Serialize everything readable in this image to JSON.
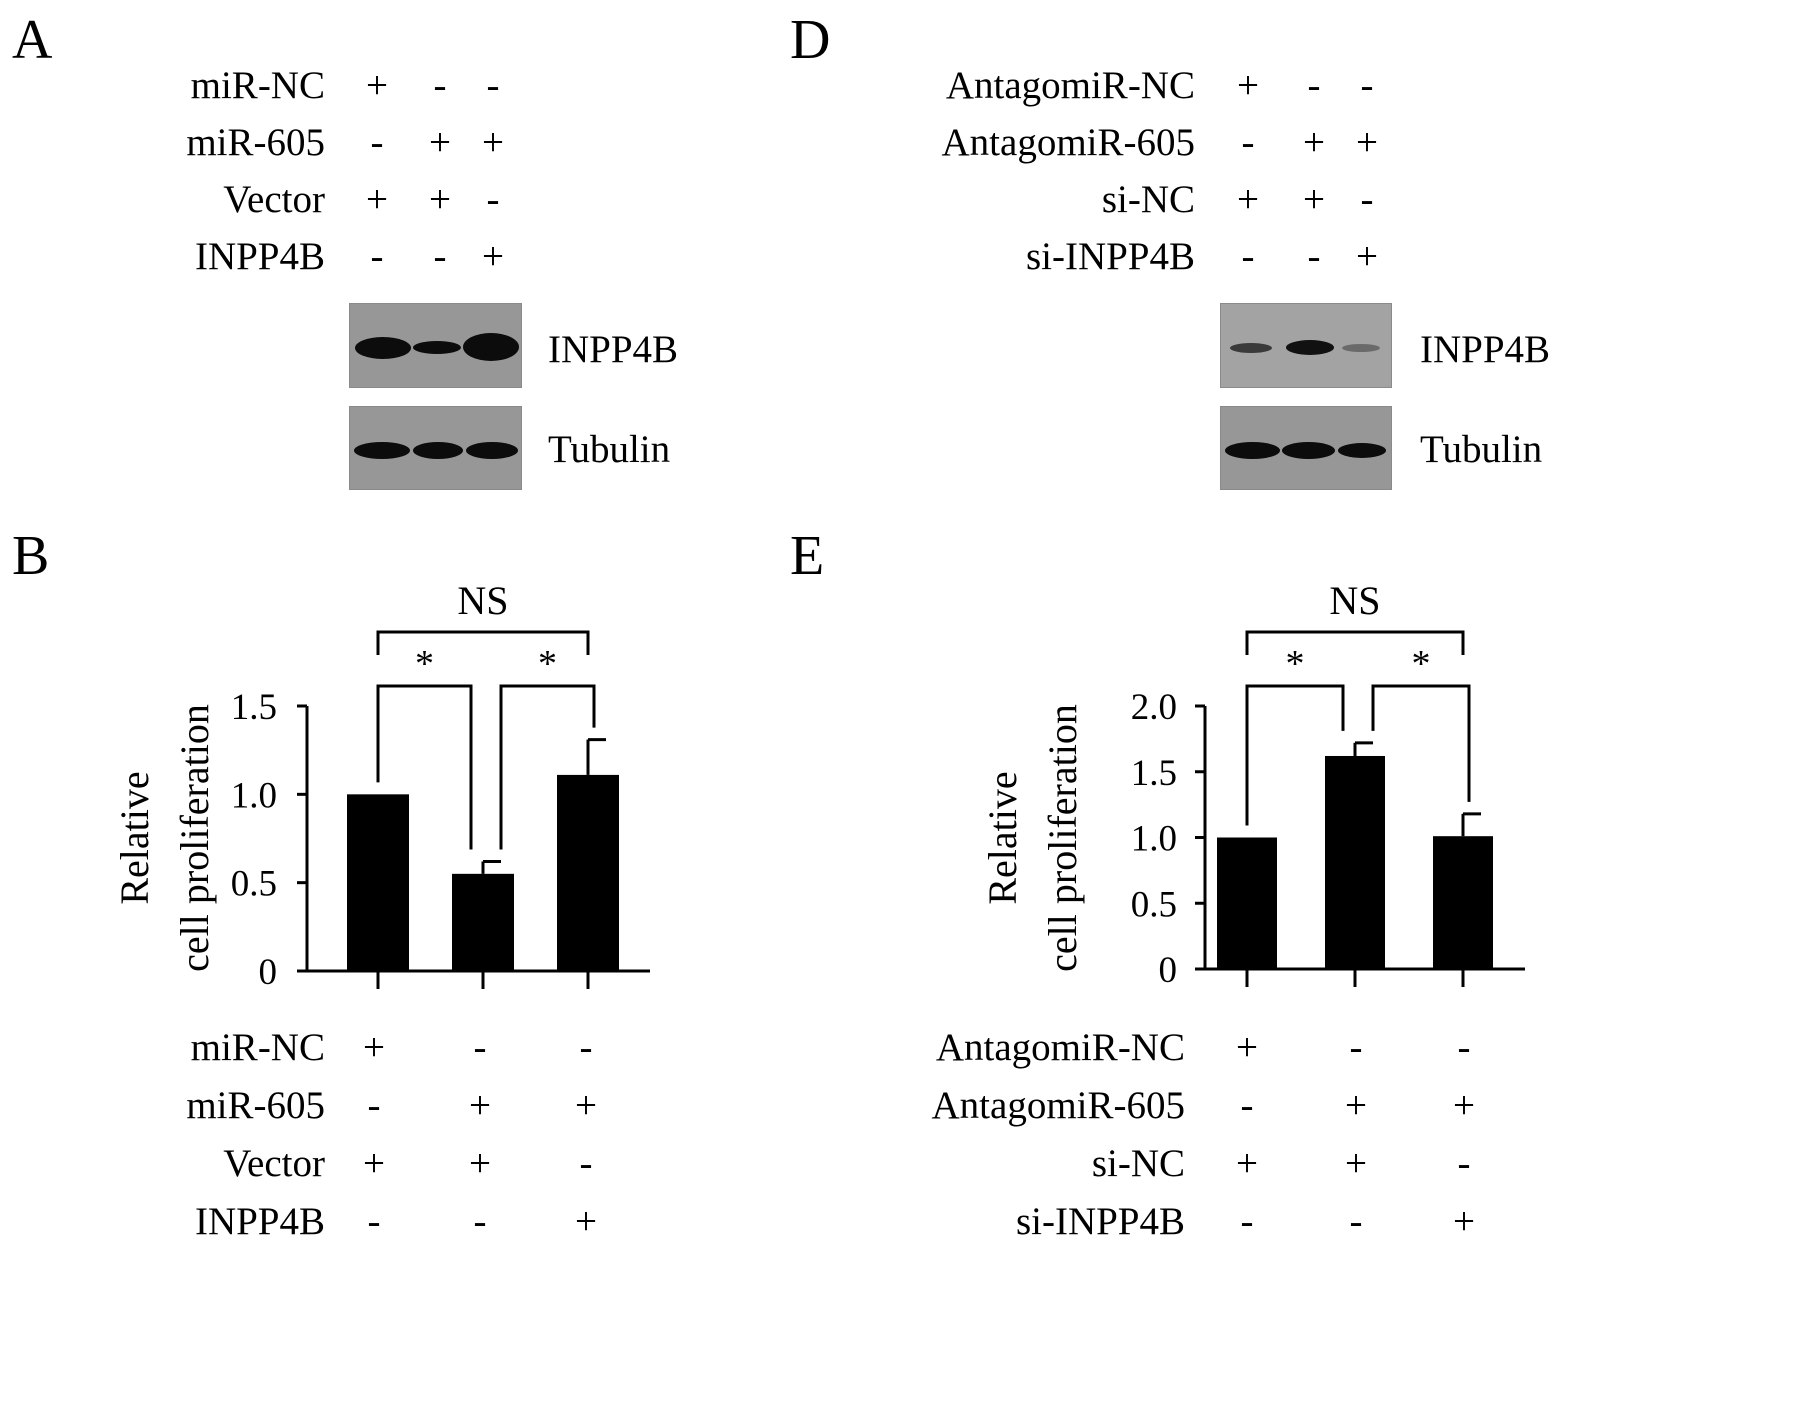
{
  "panels": {
    "A": {
      "letter": "A",
      "rows": [
        {
          "label": "miR-NC",
          "signs": [
            "+",
            "-",
            "-"
          ]
        },
        {
          "label": "miR-605",
          "signs": [
            "-",
            "+",
            "+"
          ]
        },
        {
          "label": "Vector",
          "signs": [
            "+",
            "+",
            "-"
          ]
        },
        {
          "label": "INPP4B",
          "signs": [
            "-",
            "-",
            "+"
          ]
        }
      ],
      "blots": [
        {
          "label": "INPP4B",
          "band_intensity": [
            0.95,
            0.55,
            1.0
          ]
        },
        {
          "label": "Tubulin",
          "band_intensity": [
            0.85,
            0.85,
            0.85
          ]
        }
      ]
    },
    "D": {
      "letter": "D",
      "rows": [
        {
          "label": "AntagomiR-NC",
          "signs": [
            "+",
            "-",
            "-"
          ]
        },
        {
          "label": "AntagomiR-605",
          "signs": [
            "-",
            "+",
            "+"
          ]
        },
        {
          "label": "si-NC",
          "signs": [
            "+",
            "+",
            "-"
          ]
        },
        {
          "label": "si-INPP4B",
          "signs": [
            "-",
            "-",
            "+"
          ]
        }
      ],
      "blots": [
        {
          "label": "INPP4B",
          "band_intensity": [
            0.3,
            0.7,
            0.15
          ]
        },
        {
          "label": "Tubulin",
          "band_intensity": [
            0.9,
            0.9,
            0.8
          ]
        }
      ]
    },
    "B": {
      "letter": "B",
      "rows": [
        {
          "label": "miR-NC",
          "signs": [
            "+",
            "-",
            "-"
          ]
        },
        {
          "label": "miR-605",
          "signs": [
            "-",
            "+",
            "+"
          ]
        },
        {
          "label": "Vector",
          "signs": [
            "+",
            "+",
            "-"
          ]
        },
        {
          "label": "INPP4B",
          "signs": [
            "-",
            "-",
            "+"
          ]
        }
      ]
    },
    "E": {
      "letter": "E",
      "rows": [
        {
          "label": "AntagomiR-NC",
          "signs": [
            "+",
            "-",
            "-"
          ]
        },
        {
          "label": "AntagomiR-605",
          "signs": [
            "-",
            "+",
            "+"
          ]
        },
        {
          "label": "si-NC",
          "signs": [
            "+",
            "+",
            "-"
          ]
        },
        {
          "label": "si-INPP4B",
          "signs": [
            "-",
            "-",
            "+"
          ]
        }
      ]
    }
  },
  "chart_data": [
    {
      "panel": "B",
      "type": "bar",
      "ylabel": [
        "Relative",
        "cell proliferation"
      ],
      "ylim": [
        0,
        1.5
      ],
      "yticks": [
        "0",
        "0.5",
        "1.0",
        "1.5"
      ],
      "ytick_values": [
        0,
        0.5,
        1.0,
        1.5
      ],
      "values": [
        1.0,
        0.55,
        1.11
      ],
      "errors": [
        0,
        0.07,
        0.2
      ],
      "bar_color": "#000000",
      "significance": [
        {
          "from": 0,
          "to": 1,
          "label": "*"
        },
        {
          "from": 1,
          "to": 2,
          "label": "*"
        },
        {
          "from": 0,
          "to": 2,
          "label": "NS"
        }
      ]
    },
    {
      "panel": "E",
      "type": "bar",
      "ylabel": [
        "Relative",
        "cell proliferation"
      ],
      "ylim": [
        0,
        2.0
      ],
      "yticks": [
        "0",
        "0.5",
        "1.0",
        "1.5",
        "2.0"
      ],
      "ytick_values": [
        0,
        0.5,
        1.0,
        1.5,
        2.0
      ],
      "values": [
        1.0,
        1.62,
        1.01
      ],
      "errors": [
        0,
        0.1,
        0.17
      ],
      "bar_color": "#000000",
      "significance": [
        {
          "from": 0,
          "to": 1,
          "label": "*"
        },
        {
          "from": 1,
          "to": 2,
          "label": "*"
        },
        {
          "from": 0,
          "to": 2,
          "label": "NS"
        }
      ]
    }
  ]
}
